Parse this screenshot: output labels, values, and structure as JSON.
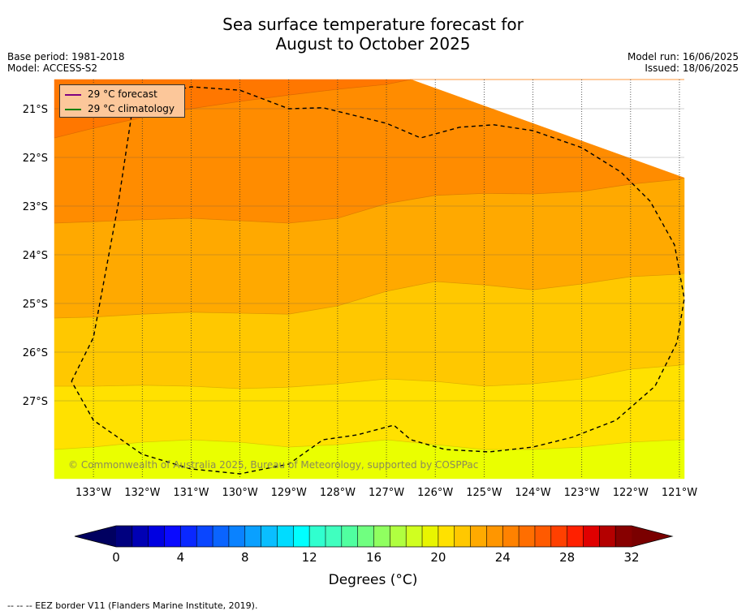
{
  "header": {
    "title_line1": "Sea surface temperature forecast for",
    "title_line2": "August to October 2025",
    "base_period": "Base period: 1981-2018",
    "model": "Model: ACCESS-S2",
    "model_run": "Model run: 16/06/2025",
    "issued": "Issued: 18/06/2025"
  },
  "legend": {
    "forecast_label": "29 °C  forecast",
    "climatology_label": "29 °C  climatology",
    "forecast_color": "#800080",
    "climatology_color": "#008000"
  },
  "watermark": "© Commonwealth of Australia 2025, Bureau of Meteorology, supported by COSPPac",
  "footer": "--  --  -- EEZ border V11 (Flanders Marine Institute, 2019).",
  "chart_data": {
    "type": "heatmap",
    "title": "Sea surface temperature forecast for August to October 2025",
    "xlabel": "",
    "ylabel": "",
    "colorbar_label": "Degrees (°C)",
    "xlim": [
      -133.8,
      -120.9
    ],
    "ylim": [
      -28.6,
      -20.4
    ],
    "x_ticks": [
      -133,
      -132,
      -131,
      -130,
      -129,
      -128,
      -127,
      -126,
      -125,
      -124,
      -123,
      -122,
      -121
    ],
    "x_tick_labels": [
      "133°W",
      "132°W",
      "131°W",
      "130°W",
      "129°W",
      "128°W",
      "127°W",
      "126°W",
      "125°W",
      "124°W",
      "123°W",
      "122°W",
      "121°W"
    ],
    "y_ticks": [
      -21,
      -22,
      -23,
      -24,
      -25,
      -26,
      -27
    ],
    "y_tick_labels": [
      "21°S",
      "22°S",
      "23°S",
      "24°S",
      "25°S",
      "26°S",
      "27°S"
    ],
    "grid": true,
    "legend_position": "top-left",
    "colorbar": {
      "min": 0,
      "max": 32,
      "step": 1,
      "extend": "both",
      "ticks": [
        0,
        4,
        8,
        12,
        16,
        20,
        24,
        28,
        32
      ],
      "colors": [
        "#00007f",
        "#0000b4",
        "#0000e1",
        "#0a0aff",
        "#0a28ff",
        "#0a46ff",
        "#0a64ff",
        "#0a82ff",
        "#0aa0ff",
        "#0abeff",
        "#00dcff",
        "#00ffff",
        "#30ffcf",
        "#40ffbf",
        "#50ffa0",
        "#70ff80",
        "#90ff60",
        "#b0ff40",
        "#d0ff20",
        "#e8f500",
        "#ffe100",
        "#ffc800",
        "#ffaa00",
        "#ff9600",
        "#ff8200",
        "#ff6e00",
        "#ff5a00",
        "#ff4000",
        "#ff2000",
        "#e00000",
        "#b40000",
        "#870000"
      ],
      "under_color": "#000060",
      "over_color": "#7a0000"
    },
    "contour_levels": [
      {
        "level": 25,
        "color": "#eaff00"
      },
      {
        "level": 26,
        "color": "#ffe100"
      },
      {
        "level": 27,
        "color": "#ffc800"
      },
      {
        "level": 28,
        "color": "#ffa900"
      },
      {
        "level": 29,
        "color": "#ff8c00"
      },
      {
        "level": 30,
        "color": "#ff7700"
      }
    ],
    "boundaries": [
      {
        "between": [
          25,
          26
        ],
        "points": [
          [
            -133.8,
            -28.0
          ],
          [
            -133.0,
            -27.95
          ],
          [
            -132.0,
            -27.85
          ],
          [
            -131.0,
            -27.8
          ],
          [
            -130.0,
            -27.85
          ],
          [
            -129.0,
            -27.95
          ],
          [
            -128.0,
            -27.9
          ],
          [
            -127.0,
            -27.8
          ],
          [
            -126.0,
            -27.9
          ],
          [
            -125.0,
            -28.0
          ],
          [
            -124.0,
            -28.0
          ],
          [
            -123.0,
            -27.95
          ],
          [
            -122.0,
            -27.85
          ],
          [
            -121.0,
            -27.8
          ],
          [
            -120.9,
            -27.8
          ]
        ]
      },
      {
        "between": [
          26,
          27
        ],
        "points": [
          [
            -133.8,
            -26.7
          ],
          [
            -133.0,
            -26.7
          ],
          [
            -132.0,
            -26.68
          ],
          [
            -131.0,
            -26.7
          ],
          [
            -130.0,
            -26.75
          ],
          [
            -129.0,
            -26.72
          ],
          [
            -128.0,
            -26.65
          ],
          [
            -127.0,
            -26.55
          ],
          [
            -126.0,
            -26.6
          ],
          [
            -125.0,
            -26.7
          ],
          [
            -124.0,
            -26.65
          ],
          [
            -123.0,
            -26.55
          ],
          [
            -122.0,
            -26.35
          ],
          [
            -121.0,
            -26.27
          ],
          [
            -120.9,
            -26.25
          ]
        ]
      },
      {
        "between": [
          27,
          28
        ],
        "points": [
          [
            -133.8,
            -25.3
          ],
          [
            -133.0,
            -25.28
          ],
          [
            -132.0,
            -25.22
          ],
          [
            -131.0,
            -25.18
          ],
          [
            -130.0,
            -25.2
          ],
          [
            -129.0,
            -25.22
          ],
          [
            -128.0,
            -25.05
          ],
          [
            -127.0,
            -24.75
          ],
          [
            -126.0,
            -24.55
          ],
          [
            -125.0,
            -24.62
          ],
          [
            -124.0,
            -24.72
          ],
          [
            -123.0,
            -24.6
          ],
          [
            -122.0,
            -24.45
          ],
          [
            -121.0,
            -24.4
          ],
          [
            -120.9,
            -24.38
          ]
        ]
      },
      {
        "between": [
          28,
          29
        ],
        "points": [
          [
            -133.8,
            -23.35
          ],
          [
            -133.0,
            -23.32
          ],
          [
            -132.0,
            -23.28
          ],
          [
            -131.0,
            -23.25
          ],
          [
            -130.0,
            -23.3
          ],
          [
            -129.0,
            -23.35
          ],
          [
            -128.0,
            -23.25
          ],
          [
            -127.0,
            -22.95
          ],
          [
            -126.0,
            -22.78
          ],
          [
            -125.0,
            -22.74
          ],
          [
            -124.0,
            -22.75
          ],
          [
            -123.0,
            -22.7
          ],
          [
            -122.0,
            -22.55
          ],
          [
            -121.0,
            -22.45
          ],
          [
            -120.9,
            -22.42
          ]
        ]
      },
      {
        "between": [
          29,
          30
        ],
        "points": [
          [
            -133.8,
            -21.6
          ],
          [
            -133.0,
            -21.4
          ],
          [
            -132.0,
            -21.18
          ],
          [
            -131.0,
            -21.0
          ],
          [
            -130.0,
            -20.85
          ],
          [
            -129.0,
            -20.72
          ],
          [
            -128.0,
            -20.6
          ],
          [
            -127.0,
            -20.5
          ],
          [
            -126.5,
            -20.4
          ]
        ]
      }
    ],
    "eez_border": [
      [
        -133.45,
        -26.6
      ],
      [
        -133.0,
        -25.7
      ],
      [
        -132.5,
        -23.0
      ],
      [
        -132.2,
        -21.0
      ],
      [
        -131.9,
        -20.75
      ],
      [
        -131.0,
        -20.55
      ],
      [
        -130.0,
        -20.62
      ],
      [
        -129.0,
        -21.0
      ],
      [
        -128.3,
        -20.98
      ],
      [
        -127.0,
        -21.3
      ],
      [
        -126.3,
        -21.6
      ],
      [
        -125.5,
        -21.38
      ],
      [
        -124.8,
        -21.33
      ],
      [
        -124.0,
        -21.45
      ],
      [
        -123.0,
        -21.8
      ],
      [
        -122.2,
        -22.3
      ],
      [
        -121.6,
        -22.9
      ],
      [
        -121.1,
        -23.8
      ],
      [
        -120.9,
        -24.9
      ],
      [
        -121.05,
        -25.8
      ],
      [
        -121.5,
        -26.7
      ],
      [
        -122.3,
        -27.4
      ],
      [
        -123.2,
        -27.75
      ],
      [
        -124.0,
        -27.95
      ],
      [
        -124.9,
        -28.05
      ],
      [
        -125.8,
        -28.0
      ],
      [
        -126.5,
        -27.8
      ],
      [
        -126.85,
        -27.5
      ],
      [
        -127.6,
        -27.7
      ],
      [
        -128.3,
        -27.8
      ],
      [
        -129.0,
        -28.3
      ],
      [
        -130.0,
        -28.5
      ],
      [
        -131.0,
        -28.4
      ],
      [
        -132.0,
        -28.1
      ],
      [
        -133.0,
        -27.4
      ],
      [
        -133.45,
        -26.6
      ]
    ]
  }
}
